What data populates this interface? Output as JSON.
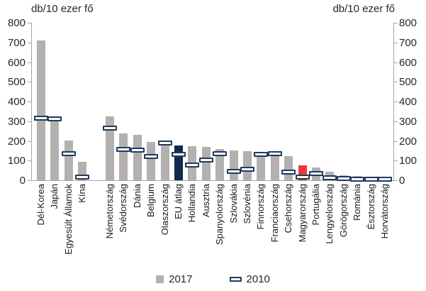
{
  "titles": {
    "left_axis_title": "db/10 ezer fő",
    "right_axis_title": "db/10 ezer fő"
  },
  "legend": {
    "items": [
      {
        "label": "2017",
        "swatch": "gray-bar-swatch"
      },
      {
        "label": "2010",
        "swatch": "dash-marker-swatch"
      }
    ]
  },
  "colors": {
    "bar_default": "#b4b0b0",
    "bar_highlight_navy": "#13294b",
    "bar_highlight_red": "#ee3a33",
    "marker_border": "#1f3a5f",
    "marker_fill": "#ffffff",
    "axis": "#a6a6a6",
    "text": "#262626"
  },
  "chart_data": {
    "type": "bar",
    "title": "",
    "xlabel": "",
    "ylabel": "db/10 ezer fő",
    "ylim": [
      0,
      800
    ],
    "ytick_step": 100,
    "ytick_labels": [
      "0",
      "100",
      "200",
      "300",
      "400",
      "500",
      "600",
      "700",
      "800"
    ],
    "grid": false,
    "legend_position": "bottom-center",
    "group_gap_after_index": 3,
    "categories": [
      "Dél-Korea",
      "Japán",
      "Egyesült Államok",
      "Kína",
      "Németország",
      "Svédország",
      "Dánia",
      "Belgium",
      "Olaszország",
      "EU átlag",
      "Hollandia",
      "Ausztria",
      "Spanyolország",
      "Szlovákia",
      "Szlovénia",
      "Finnország",
      "Franciaország",
      "Csehország",
      "Magyarország",
      "Portugália",
      "Lengyelország",
      "Görögország",
      "Románia",
      "Észtország",
      "Horvátország"
    ],
    "series": [
      {
        "name": "2017",
        "style": "bar",
        "values": [
          710,
          303,
          203,
          95,
          325,
          238,
          230,
          193,
          185,
          177,
          172,
          169,
          160,
          151,
          146,
          142,
          133,
          122,
          76,
          64,
          45,
          24,
          21,
          14,
          10
        ]
      },
      {
        "name": "2010",
        "style": "dash-marker",
        "values": [
          315,
          310,
          135,
          17,
          265,
          158,
          152,
          120,
          188,
          133,
          78,
          102,
          136,
          46,
          57,
          132,
          136,
          40,
          18,
          36,
          12,
          10,
          6,
          5,
          5
        ]
      }
    ],
    "bar_color_overrides": {
      "EU átlag": "#13294b",
      "Magyarország": "#ee3a33"
    }
  }
}
